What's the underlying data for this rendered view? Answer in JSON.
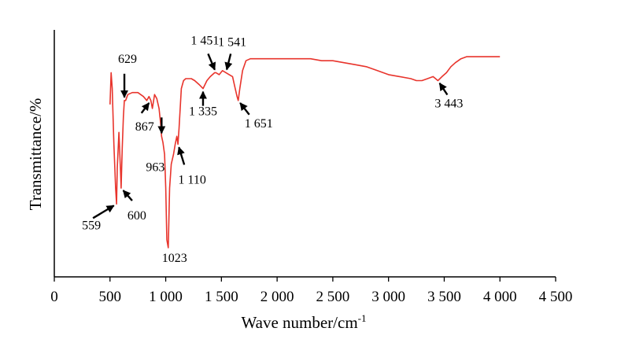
{
  "chart_data": {
    "type": "line",
    "title": "",
    "xlabel": "Wave number/cm",
    "xlabel_sup": "-1",
    "ylabel": "Transmittance/%",
    "xlim": [
      0,
      4500
    ],
    "ylim": [
      0,
      100
    ],
    "x_ticks": [
      0,
      500,
      1000,
      1500,
      2000,
      2500,
      3000,
      3500,
      4000,
      4500
    ],
    "x_tick_labels": [
      "0",
      "500",
      "1 000",
      "1 500",
      "2 000",
      "2 500",
      "3 000",
      "3 500",
      "4 000",
      "4 500"
    ],
    "grid": false,
    "legend": "none",
    "series": [
      {
        "color": "#e8342c",
        "x": [
          500,
          510,
          520,
          535,
          550,
          559,
          565,
          580,
          595,
          600,
          610,
          620,
          629,
          640,
          660,
          700,
          750,
          800,
          830,
          850,
          867,
          880,
          900,
          920,
          940,
          955,
          963,
          975,
          990,
          1000,
          1010,
          1023,
          1035,
          1050,
          1070,
          1085,
          1100,
          1110,
          1120,
          1140,
          1160,
          1180,
          1200,
          1230,
          1260,
          1300,
          1335,
          1370,
          1400,
          1440,
          1451,
          1480,
          1510,
          1541,
          1570,
          1600,
          1620,
          1640,
          1651,
          1665,
          1690,
          1720,
          1760,
          1800,
          1900,
          2000,
          2100,
          2200,
          2300,
          2400,
          2500,
          2600,
          2700,
          2800,
          2900,
          3000,
          3100,
          3200,
          3250,
          3300,
          3350,
          3400,
          3443,
          3480,
          3520,
          3560,
          3600,
          3650,
          3700,
          3800,
          3900,
          4000
        ],
        "y": [
          72,
          88,
          80,
          52,
          30,
          22,
          40,
          58,
          38,
          30,
          50,
          66,
          74,
          74,
          77,
          78,
          78,
          76,
          74,
          76,
          74,
          70,
          77,
          75,
          70,
          62,
          56,
          53,
          47,
          30,
          4,
          0,
          30,
          42,
          47,
          52,
          56,
          52,
          60,
          80,
          84,
          85,
          85,
          85,
          84,
          82,
          80,
          84,
          86,
          88,
          88,
          87,
          89,
          88,
          87,
          86,
          81,
          76,
          74,
          80,
          89,
          94,
          95,
          95,
          95,
          95,
          95,
          95,
          95,
          94,
          94,
          93,
          92,
          91,
          89,
          87,
          86,
          85,
          84,
          84,
          85,
          86,
          84,
          86,
          88,
          91,
          93,
          95,
          96,
          96,
          96,
          96
        ]
      }
    ],
    "annotations": [
      {
        "text": "559",
        "x": 559,
        "y": 22
      },
      {
        "text": "600",
        "x": 600,
        "y": 30
      },
      {
        "text": "629",
        "x": 629,
        "y": 74
      },
      {
        "text": "867",
        "x": 867,
        "y": 74
      },
      {
        "text": "963",
        "x": 963,
        "y": 56
      },
      {
        "text": "1023",
        "x": 1023,
        "y": 0
      },
      {
        "text": "1 110",
        "x": 1110,
        "y": 52
      },
      {
        "text": "1 335",
        "x": 1335,
        "y": 80
      },
      {
        "text": "1 451",
        "x": 1451,
        "y": 88
      },
      {
        "text": "1 541",
        "x": 1541,
        "y": 88
      },
      {
        "text": "1 651",
        "x": 1651,
        "y": 74
      },
      {
        "text": "3 443",
        "x": 3443,
        "y": 84
      }
    ]
  }
}
